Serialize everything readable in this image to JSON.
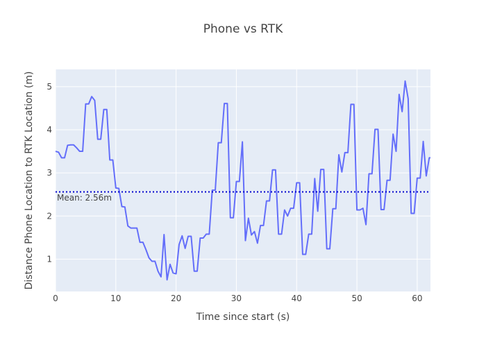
{
  "chart_data": {
    "type": "line",
    "title": "Phone vs RTK",
    "xlabel": "Time since start (s)",
    "ylabel": "Distance Phone Location to RTK Location (m)",
    "xlim": [
      0,
      62.2
    ],
    "ylim": [
      0.25,
      5.4
    ],
    "xticks": [
      0,
      10,
      20,
      30,
      40,
      50,
      60
    ],
    "yticks": [
      1,
      2,
      3,
      4,
      5
    ],
    "grid": true,
    "line_color": "#636efa",
    "mean_line_color": "#0000cd",
    "plot_bg": "#e5ecf6",
    "annotation": "Mean: 2.56m",
    "mean": 2.56,
    "series": [
      {
        "name": "distance",
        "x": [
          0,
          0.5,
          1,
          1.5,
          2,
          2.5,
          3,
          3.5,
          4,
          4.5,
          5,
          5.5,
          6,
          6.5,
          7,
          7.5,
          8,
          8.5,
          9,
          9.5,
          10,
          10.5,
          11,
          11.5,
          12,
          12.5,
          13,
          13.5,
          14,
          14.5,
          15,
          15.5,
          16,
          16.5,
          17,
          17.5,
          18,
          18.5,
          19,
          19.5,
          20,
          20.5,
          21,
          21.5,
          22,
          22.5,
          23,
          23.5,
          24,
          24.5,
          25,
          25.5,
          26,
          26.5,
          27,
          27.5,
          28,
          28.5,
          29,
          29.5,
          30,
          30.5,
          31,
          31.5,
          32,
          32.5,
          33,
          33.5,
          34,
          34.5,
          35,
          35.5,
          36,
          36.5,
          37,
          37.5,
          38,
          38.5,
          39,
          39.5,
          40,
          40.5,
          41,
          41.5,
          42,
          42.5,
          43,
          43.5,
          44,
          44.5,
          45,
          45.5,
          46,
          46.5,
          47,
          47.5,
          48,
          48.5,
          49,
          49.5,
          50,
          50.5,
          51,
          51.5,
          52,
          52.5,
          53,
          53.5,
          54,
          54.5,
          55,
          55.5,
          56,
          56.5,
          57,
          57.5,
          58,
          58.5,
          59,
          59.5,
          60,
          60.5,
          61,
          61.5,
          62,
          62.2
        ],
        "y": [
          3.5,
          3.48,
          3.35,
          3.35,
          3.64,
          3.65,
          3.65,
          3.58,
          3.5,
          3.5,
          4.6,
          4.6,
          4.77,
          4.68,
          3.78,
          3.78,
          4.47,
          4.47,
          3.3,
          3.3,
          2.65,
          2.64,
          2.22,
          2.21,
          1.77,
          1.72,
          1.72,
          1.72,
          1.39,
          1.39,
          1.22,
          1.03,
          0.95,
          0.95,
          0.72,
          0.59,
          1.57,
          0.52,
          0.88,
          0.68,
          0.66,
          1.34,
          1.54,
          1.25,
          1.53,
          1.53,
          0.72,
          0.72,
          1.49,
          1.49,
          1.58,
          1.58,
          2.6,
          2.6,
          3.7,
          3.7,
          4.61,
          4.61,
          1.96,
          1.96,
          2.8,
          2.8,
          3.72,
          1.43,
          1.95,
          1.56,
          1.64,
          1.37,
          1.78,
          1.78,
          2.35,
          2.35,
          3.07,
          3.07,
          1.58,
          1.58,
          2.14,
          2.0,
          2.18,
          2.18,
          2.77,
          2.77,
          1.11,
          1.11,
          1.58,
          1.58,
          2.87,
          2.11,
          3.08,
          3.08,
          1.24,
          1.24,
          2.17,
          2.17,
          3.42,
          3.02,
          3.47,
          3.47,
          4.59,
          4.59,
          2.14,
          2.14,
          2.18,
          1.8,
          2.98,
          2.98,
          4.01,
          4.01,
          2.15,
          2.15,
          2.83,
          2.83,
          3.9,
          3.5,
          4.82,
          4.42,
          5.13,
          4.72,
          2.06,
          2.06,
          2.88,
          2.88,
          3.73,
          2.93,
          3.35,
          3.35
        ]
      }
    ]
  }
}
